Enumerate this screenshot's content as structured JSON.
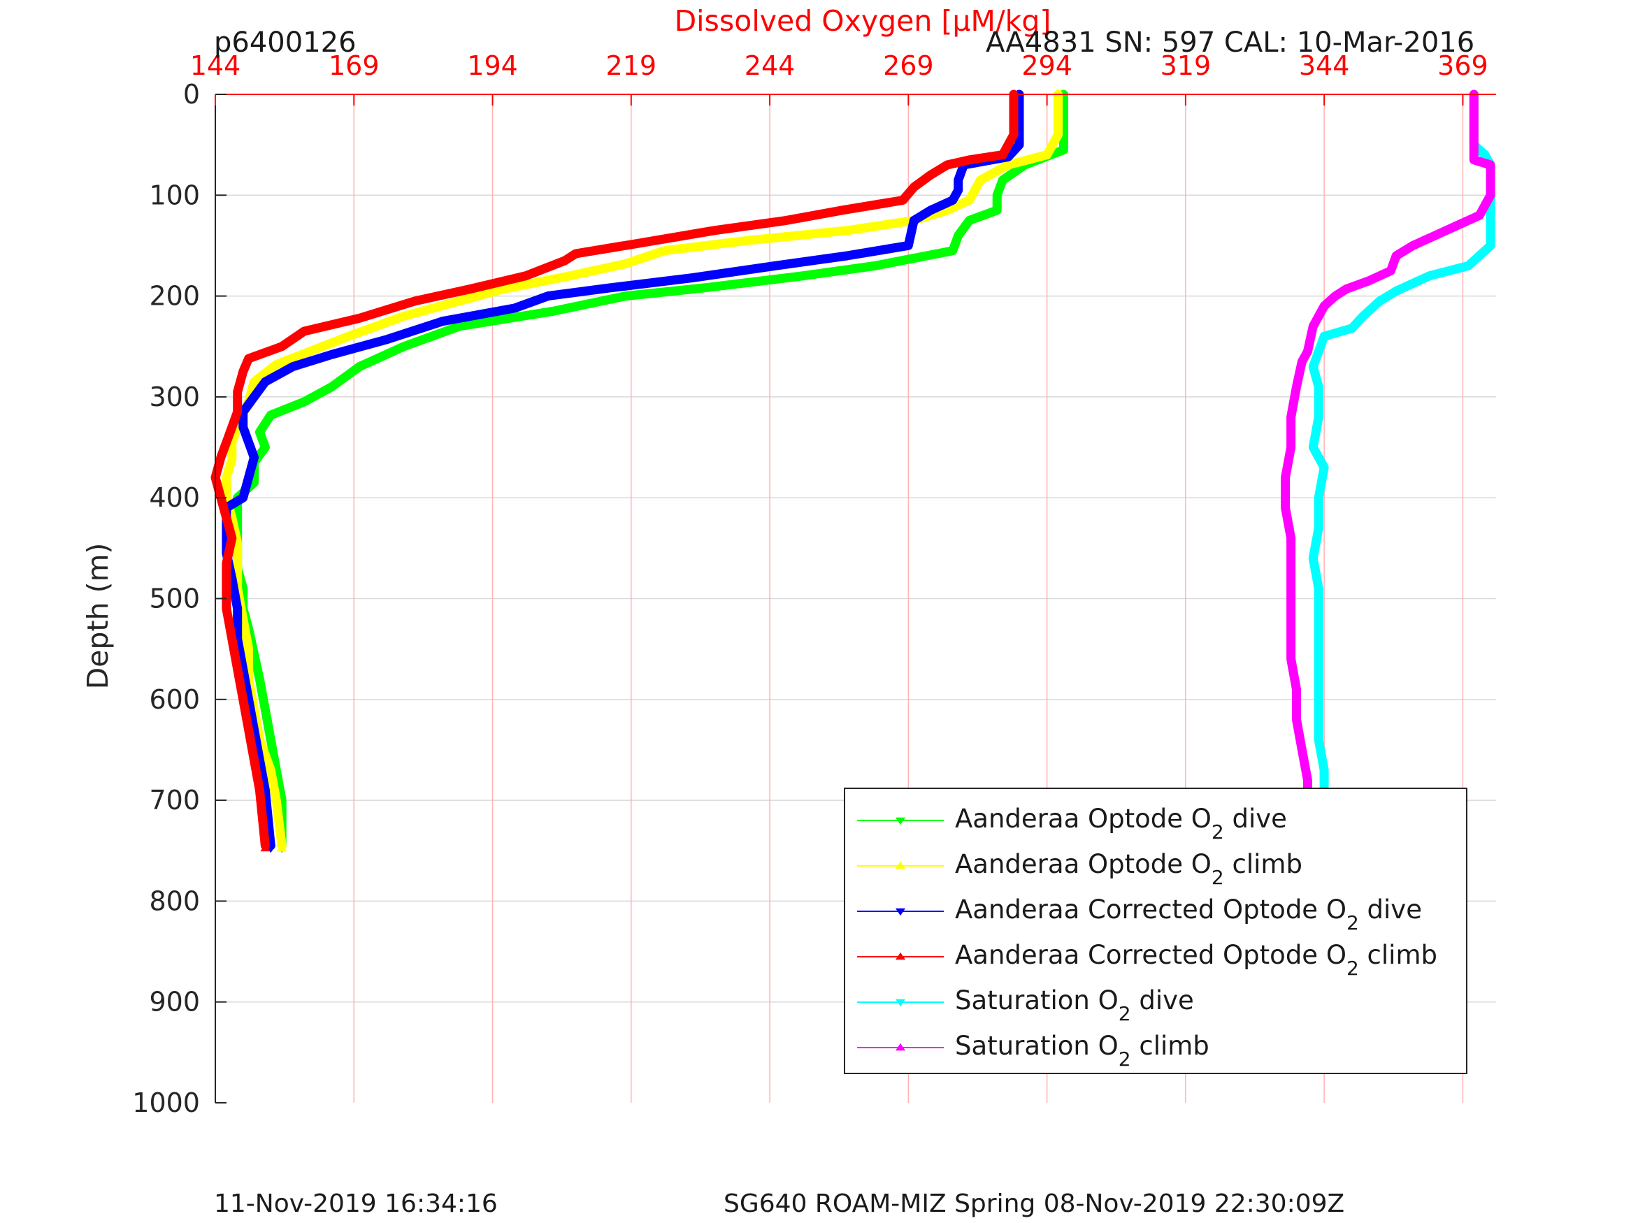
{
  "header": {
    "profile_id": "p6400126",
    "sensor_info": "AA4831   SN: 597  CAL: 10-Mar-2016"
  },
  "footer": {
    "left_timestamp": "11-Nov-2019 16:34:16",
    "right_mission": "SG640 ROAM-MIZ Spring 08-Nov-2019 22:30:09Z"
  },
  "colors": {
    "top_axis": "#ff0000",
    "grid_top": "#ffb3b3",
    "grid_left": "#d9d9d9",
    "axis": "#262626"
  },
  "chart_data": {
    "type": "line",
    "title": "",
    "xlabel": "Dissolved Oxygen [μM/kg]",
    "ylabel": "Depth (m)",
    "xlim": [
      144,
      375
    ],
    "ylim": [
      0,
      1000
    ],
    "y_reversed": true,
    "xticks": [
      144,
      169,
      194,
      219,
      244,
      269,
      294,
      319,
      344,
      369
    ],
    "yticks": [
      0,
      100,
      200,
      300,
      400,
      500,
      600,
      700,
      800,
      900,
      1000
    ],
    "grid": true,
    "legend_position": "bottom-right",
    "series": [
      {
        "name": "Aanderaa Optode O2 dive",
        "legend_parts": [
          "Aanderaa Optode O",
          "2",
          " dive"
        ],
        "color": "#00ff00",
        "marker": "triangle-down",
        "points": [
          [
            297,
            0
          ],
          [
            297,
            55
          ],
          [
            290,
            70
          ],
          [
            286,
            85
          ],
          [
            285,
            100
          ],
          [
            285,
            115
          ],
          [
            280,
            125
          ],
          [
            278,
            140
          ],
          [
            277,
            155
          ],
          [
            263,
            170
          ],
          [
            250,
            180
          ],
          [
            232,
            192
          ],
          [
            218,
            200
          ],
          [
            205,
            215
          ],
          [
            188,
            230
          ],
          [
            178,
            250
          ],
          [
            170,
            270
          ],
          [
            165,
            290
          ],
          [
            160,
            305
          ],
          [
            154,
            318
          ],
          [
            152,
            335
          ],
          [
            153,
            350
          ],
          [
            151,
            365
          ],
          [
            151,
            385
          ],
          [
            148,
            400
          ],
          [
            148,
            415
          ],
          [
            148,
            440
          ],
          [
            148,
            470
          ],
          [
            149,
            490
          ],
          [
            149,
            510
          ],
          [
            150,
            530
          ],
          [
            151,
            555
          ],
          [
            152,
            580
          ],
          [
            153,
            610
          ],
          [
            154,
            640
          ],
          [
            155,
            670
          ],
          [
            156,
            700
          ],
          [
            156,
            745
          ]
        ]
      },
      {
        "name": "Aanderaa Optode O2 climb",
        "legend_parts": [
          "Aanderaa Optode O",
          "2",
          " climb"
        ],
        "color": "#ffff00",
        "marker": "triangle-up",
        "points": [
          [
            296,
            0
          ],
          [
            296,
            40
          ],
          [
            294,
            60
          ],
          [
            287,
            70
          ],
          [
            282,
            85
          ],
          [
            280,
            105
          ],
          [
            276,
            115
          ],
          [
            270,
            125
          ],
          [
            258,
            135
          ],
          [
            240,
            145
          ],
          [
            225,
            155
          ],
          [
            218,
            168
          ],
          [
            208,
            180
          ],
          [
            196,
            193
          ],
          [
            188,
            205
          ],
          [
            178,
            220
          ],
          [
            168,
            240
          ],
          [
            161,
            255
          ],
          [
            155,
            268
          ],
          [
            151,
            285
          ],
          [
            150,
            305
          ],
          [
            148,
            330
          ],
          [
            147,
            345
          ],
          [
            147,
            362
          ],
          [
            146,
            380
          ],
          [
            146,
            400
          ],
          [
            147,
            420
          ],
          [
            148,
            445
          ],
          [
            148,
            470
          ],
          [
            148,
            490
          ],
          [
            149,
            520
          ],
          [
            150,
            550
          ],
          [
            150,
            580
          ],
          [
            151,
            610
          ],
          [
            152,
            640
          ],
          [
            154,
            670
          ],
          [
            155,
            700
          ],
          [
            156,
            745
          ]
        ]
      },
      {
        "name": "Aanderaa Corrected Optode O2 dive",
        "legend_parts": [
          "Aanderaa Corrected Optode O",
          "2",
          " dive"
        ],
        "color": "#0000ff",
        "marker": "triangle-down",
        "points": [
          [
            289,
            0
          ],
          [
            289,
            50
          ],
          [
            287,
            62
          ],
          [
            279,
            70
          ],
          [
            278,
            85
          ],
          [
            278,
            95
          ],
          [
            277,
            105
          ],
          [
            273,
            115
          ],
          [
            270,
            125
          ],
          [
            269,
            150
          ],
          [
            258,
            160
          ],
          [
            245,
            170
          ],
          [
            230,
            182
          ],
          [
            215,
            192
          ],
          [
            204,
            200
          ],
          [
            198,
            212
          ],
          [
            185,
            225
          ],
          [
            175,
            243
          ],
          [
            165,
            258
          ],
          [
            158,
            270
          ],
          [
            153,
            285
          ],
          [
            151,
            300
          ],
          [
            149,
            315
          ],
          [
            149,
            330
          ],
          [
            150,
            345
          ],
          [
            151,
            360
          ],
          [
            150,
            380
          ],
          [
            149,
            400
          ],
          [
            146,
            410
          ],
          [
            146,
            430
          ],
          [
            146,
            455
          ],
          [
            147,
            480
          ],
          [
            148,
            510
          ],
          [
            148,
            540
          ],
          [
            149,
            570
          ],
          [
            150,
            600
          ],
          [
            151,
            630
          ],
          [
            152,
            660
          ],
          [
            153,
            690
          ],
          [
            154,
            745
          ]
        ]
      },
      {
        "name": "Aanderaa Corrected Optode O2 climb",
        "legend_parts": [
          "Aanderaa Corrected Optode O",
          "2",
          " climb"
        ],
        "color": "#ff0000",
        "marker": "triangle-up",
        "points": [
          [
            288,
            0
          ],
          [
            288,
            40
          ],
          [
            286,
            60
          ],
          [
            280,
            65
          ],
          [
            276,
            70
          ],
          [
            273,
            80
          ],
          [
            270,
            92
          ],
          [
            268,
            105
          ],
          [
            257,
            115
          ],
          [
            247,
            125
          ],
          [
            234,
            135
          ],
          [
            220,
            148
          ],
          [
            209,
            158
          ],
          [
            207,
            165
          ],
          [
            200,
            180
          ],
          [
            190,
            193
          ],
          [
            180,
            205
          ],
          [
            170,
            222
          ],
          [
            160,
            235
          ],
          [
            156,
            250
          ],
          [
            150,
            262
          ],
          [
            149,
            275
          ],
          [
            148,
            295
          ],
          [
            148,
            315
          ],
          [
            147,
            330
          ],
          [
            146,
            345
          ],
          [
            145,
            360
          ],
          [
            144,
            380
          ],
          [
            145,
            400
          ],
          [
            146,
            420
          ],
          [
            147,
            440
          ],
          [
            146,
            465
          ],
          [
            146,
            490
          ],
          [
            146,
            510
          ],
          [
            147,
            540
          ],
          [
            148,
            570
          ],
          [
            149,
            600
          ],
          [
            150,
            630
          ],
          [
            151,
            660
          ],
          [
            152,
            690
          ],
          [
            153,
            745
          ]
        ]
      },
      {
        "name": "Saturation O2 dive",
        "legend_parts": [
          "Saturation O",
          "2",
          " dive"
        ],
        "color": "#00ffff",
        "marker": "triangle-down",
        "points": [
          [
            371,
            0
          ],
          [
            371,
            50
          ],
          [
            373,
            60
          ],
          [
            374,
            70
          ],
          [
            374,
            100
          ],
          [
            374,
            120
          ],
          [
            374,
            150
          ],
          [
            370,
            170
          ],
          [
            363,
            180
          ],
          [
            357,
            195
          ],
          [
            354,
            205
          ],
          [
            351,
            220
          ],
          [
            349,
            232
          ],
          [
            344,
            240
          ],
          [
            343,
            255
          ],
          [
            342,
            270
          ],
          [
            343,
            290
          ],
          [
            343,
            320
          ],
          [
            342,
            350
          ],
          [
            344,
            370
          ],
          [
            343,
            400
          ],
          [
            343,
            430
          ],
          [
            342,
            460
          ],
          [
            343,
            490
          ],
          [
            343,
            520
          ],
          [
            343,
            550
          ],
          [
            343,
            580
          ],
          [
            343,
            610
          ],
          [
            343,
            640
          ],
          [
            344,
            670
          ],
          [
            344,
            700
          ],
          [
            344,
            745
          ]
        ]
      },
      {
        "name": "Saturation O2 climb",
        "legend_parts": [
          "Saturation O",
          "2",
          " climb"
        ],
        "color": "#ff00ff",
        "marker": "triangle-up",
        "points": [
          [
            371,
            0
          ],
          [
            371,
            40
          ],
          [
            371,
            65
          ],
          [
            374,
            70
          ],
          [
            374,
            100
          ],
          [
            372,
            120
          ],
          [
            368,
            130
          ],
          [
            364,
            140
          ],
          [
            360,
            150
          ],
          [
            357,
            160
          ],
          [
            356,
            175
          ],
          [
            352,
            185
          ],
          [
            348,
            193
          ],
          [
            346,
            200
          ],
          [
            344,
            210
          ],
          [
            342,
            230
          ],
          [
            341,
            255
          ],
          [
            340,
            265
          ],
          [
            339,
            290
          ],
          [
            338,
            320
          ],
          [
            338,
            350
          ],
          [
            337,
            380
          ],
          [
            337,
            410
          ],
          [
            338,
            440
          ],
          [
            338,
            470
          ],
          [
            338,
            500
          ],
          [
            338,
            530
          ],
          [
            338,
            560
          ],
          [
            339,
            590
          ],
          [
            339,
            620
          ],
          [
            340,
            650
          ],
          [
            341,
            680
          ],
          [
            341,
            710
          ],
          [
            341,
            745
          ]
        ]
      }
    ]
  }
}
